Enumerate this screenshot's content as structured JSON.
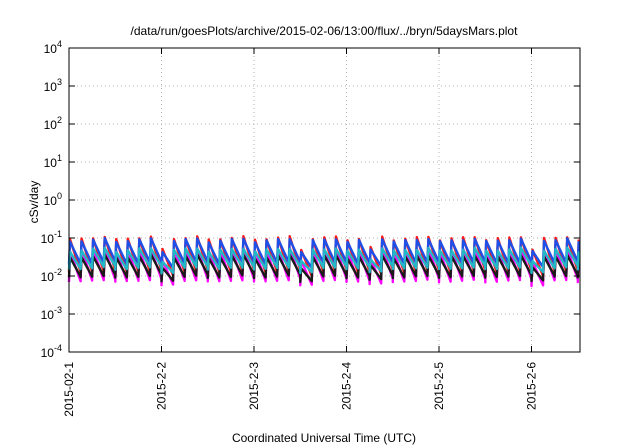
{
  "chart_data": {
    "type": "line",
    "title": "/data/run/goesPlots/archive/2015-02-06/13:00/flux/../bryn/5daysMars.plot",
    "xlabel": "Coordinated Universal Time (UTC)",
    "ylabel": "cSv/day",
    "yscale": "log",
    "ylim": [
      0.0001,
      10000
    ],
    "xlim": [
      "2015-02-01",
      "2015-02-06 14:00"
    ],
    "grid": true,
    "y_ticks": [
      {
        "base": "10",
        "exp": "-4"
      },
      {
        "base": "10",
        "exp": "-3"
      },
      {
        "base": "10",
        "exp": "-2"
      },
      {
        "base": "10",
        "exp": "-1"
      },
      {
        "base": "10",
        "exp": "0"
      },
      {
        "base": "10",
        "exp": "1"
      },
      {
        "base": "10",
        "exp": "2"
      },
      {
        "base": "10",
        "exp": "3"
      },
      {
        "base": "10",
        "exp": "4"
      }
    ],
    "x_ticks": [
      "2015-02-1",
      "2015-2-2",
      "2015-2-3",
      "2015-2-4",
      "2015-2-5",
      "2015-2-6"
    ],
    "cycle_hours": 3,
    "series": [
      {
        "color": "#ff00ff",
        "peak": 0.045,
        "trough": 0.007
      },
      {
        "color": "#ff1a1a",
        "peak": 0.09,
        "trough": 0.012
      },
      {
        "color": "#1a1a1a",
        "peak": 0.03,
        "trough": 0.009
      },
      {
        "color": "#1e4fe6",
        "peak": 0.08,
        "trough": 0.02
      },
      {
        "color": "#22b8c8",
        "peak": 0.045,
        "trough": 0.015
      }
    ]
  }
}
